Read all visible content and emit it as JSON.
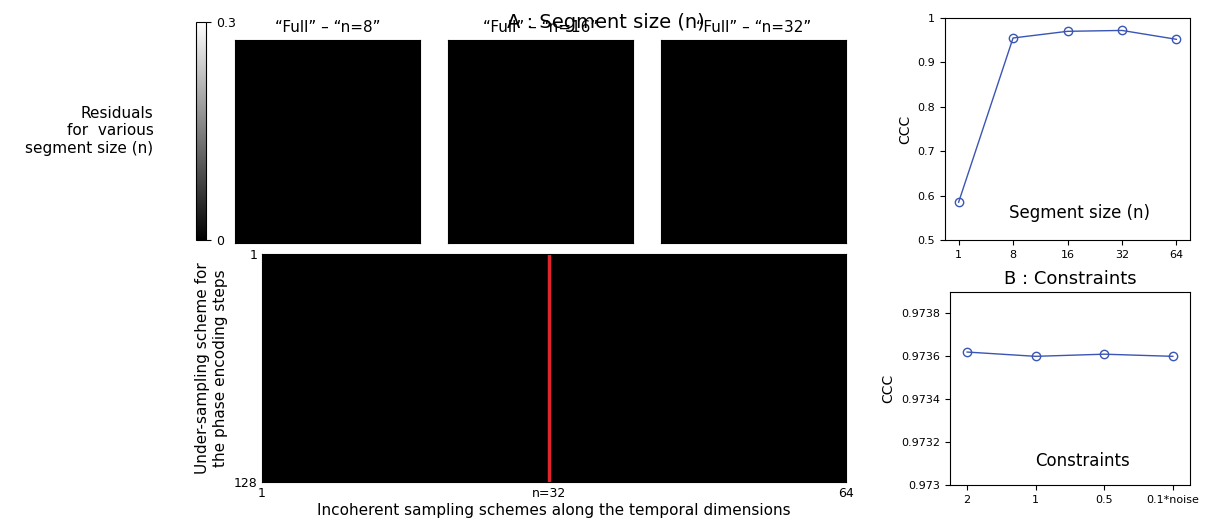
{
  "figure_title": "A : Segment size (n)",
  "chart_data": [
    {
      "type": "image",
      "title": "“Full” – “n=8”"
    },
    {
      "type": "image",
      "title": "“Full” – “n=16”"
    },
    {
      "type": "image",
      "title": "“Full” – “n=32”"
    },
    {
      "type": "colorbar",
      "ylabel": "Residuals\nfor  various\nsegment size (n)",
      "clim": [
        0,
        0.3
      ],
      "cticks": [
        0,
        0.3
      ]
    },
    {
      "type": "mask",
      "ylabel": "Under-sampling scheme for\nthe phase encoding steps",
      "xlabel": "Incoherent sampling schemes along the temporal dimensions",
      "xlim": [
        1,
        64
      ],
      "ylim": [
        128,
        1
      ],
      "xticks": [
        1,
        {
          "value": 32,
          "label": "n=32"
        },
        64
      ],
      "yticks": [
        1,
        128
      ],
      "vline": 32,
      "color": "#e0262b"
    },
    {
      "type": "line",
      "ylabel": "CCC",
      "annotation": "Segment size (n)",
      "categories": [
        "1",
        "8",
        "16",
        "32",
        "64"
      ],
      "values": [
        0.585,
        0.955,
        0.97,
        0.972,
        0.952
      ],
      "ylim": [
        0.5,
        1
      ],
      "yticks": [
        0.5,
        0.6,
        0.7,
        0.8,
        0.9,
        1
      ],
      "color": "#3a55b4",
      "marker": "o"
    },
    {
      "type": "line",
      "title": "B : Constraints",
      "ylabel": "CCC",
      "annotation": "Constraints",
      "categories": [
        "2",
        "1",
        "0.5",
        "0.1*noise"
      ],
      "values": [
        0.97362,
        0.9736,
        0.97361,
        0.9736
      ],
      "ylim": [
        0.973,
        0.9739
      ],
      "yticks": [
        0.973,
        0.9732,
        0.9734,
        0.9736,
        0.9738
      ],
      "color": "#3a55b4",
      "marker": "o"
    }
  ]
}
